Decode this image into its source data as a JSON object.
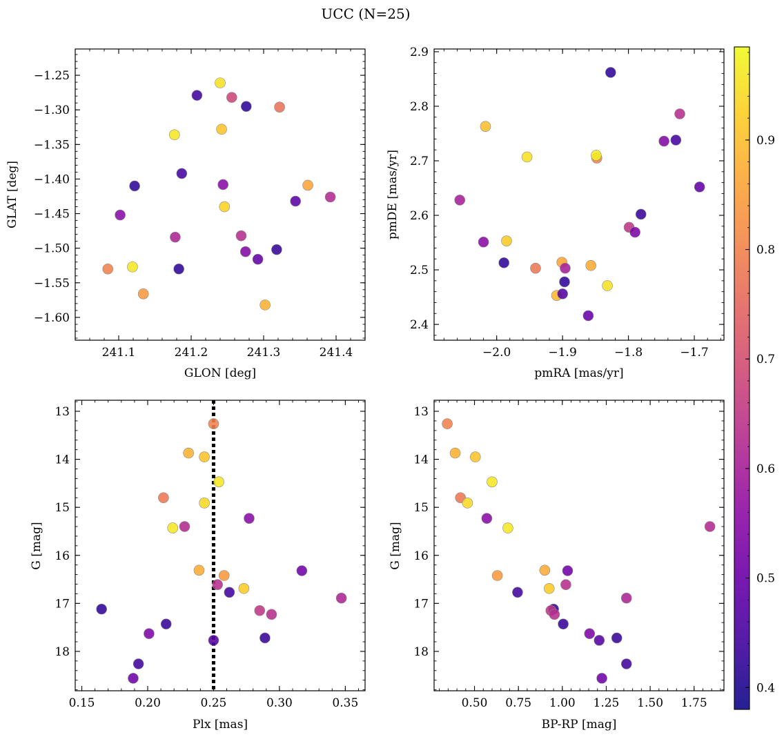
{
  "figure": {
    "title": "UCC (N=25)"
  },
  "colorbar": {
    "colormap": "plasma",
    "range": [
      0.38,
      0.985
    ],
    "ticks": [
      0.4,
      0.5,
      0.6,
      0.7,
      0.8,
      0.9
    ],
    "tick_labels": [
      "0.4",
      "0.5",
      "0.6",
      "0.7",
      "0.8",
      "0.9"
    ]
  },
  "chart_data": [
    {
      "type": "scatter",
      "id": "sky",
      "xlabel": "GLON [deg]",
      "ylabel": "GLAT [deg]",
      "xlim": [
        241.04,
        241.44
      ],
      "ylim": [
        -1.633,
        -1.212
      ],
      "xticks": [
        241.1,
        241.2,
        241.3,
        241.4
      ],
      "xtick_labels": [
        "241.1",
        "241.2",
        "241.3",
        "241.4"
      ],
      "yticks": [
        -1.25,
        -1.3,
        -1.35,
        -1.4,
        -1.45,
        -1.5,
        -1.55,
        -1.6
      ],
      "ytick_labels": [
        "−1.25",
        "−1.30",
        "−1.35",
        "−1.40",
        "−1.45",
        "−1.50",
        "−1.55",
        "−1.60"
      ],
      "yinvert": false,
      "points": [
        {
          "x": 241.24,
          "y": -1.261,
          "c": 0.95
        },
        {
          "x": 241.208,
          "y": -1.279,
          "c": 0.44
        },
        {
          "x": 241.256,
          "y": -1.282,
          "c": 0.68
        },
        {
          "x": 241.276,
          "y": -1.295,
          "c": 0.42
        },
        {
          "x": 241.322,
          "y": -1.296,
          "c": 0.77
        },
        {
          "x": 241.242,
          "y": -1.328,
          "c": 0.91
        },
        {
          "x": 241.177,
          "y": -1.336,
          "c": 0.96
        },
        {
          "x": 241.187,
          "y": -1.392,
          "c": 0.45
        },
        {
          "x": 241.244,
          "y": -1.408,
          "c": 0.55
        },
        {
          "x": 241.122,
          "y": -1.41,
          "c": 0.42
        },
        {
          "x": 241.361,
          "y": -1.409,
          "c": 0.86
        },
        {
          "x": 241.246,
          "y": -1.44,
          "c": 0.93
        },
        {
          "x": 241.344,
          "y": -1.432,
          "c": 0.48
        },
        {
          "x": 241.392,
          "y": -1.426,
          "c": 0.62
        },
        {
          "x": 241.102,
          "y": -1.452,
          "c": 0.55
        },
        {
          "x": 241.178,
          "y": -1.484,
          "c": 0.61
        },
        {
          "x": 241.269,
          "y": -1.482,
          "c": 0.63
        },
        {
          "x": 241.275,
          "y": -1.505,
          "c": 0.54
        },
        {
          "x": 241.292,
          "y": -1.516,
          "c": 0.49
        },
        {
          "x": 241.318,
          "y": -1.502,
          "c": 0.43
        },
        {
          "x": 241.085,
          "y": -1.53,
          "c": 0.8
        },
        {
          "x": 241.119,
          "y": -1.527,
          "c": 0.96
        },
        {
          "x": 241.183,
          "y": -1.53,
          "c": 0.42
        },
        {
          "x": 241.134,
          "y": -1.566,
          "c": 0.84
        },
        {
          "x": 241.302,
          "y": -1.582,
          "c": 0.88
        }
      ]
    },
    {
      "type": "scatter",
      "id": "proper-motion",
      "xlabel": "pmRA [mas/yr]",
      "ylabel": "pmDE [mas/yr]",
      "xlim": [
        -2.095,
        -1.655
      ],
      "ylim": [
        2.371,
        2.905
      ],
      "xticks": [
        -2.0,
        -1.9,
        -1.8,
        -1.7
      ],
      "xtick_labels": [
        "−2.0",
        "−1.9",
        "−1.8",
        "−1.7"
      ],
      "yticks": [
        2.4,
        2.5,
        2.6,
        2.7,
        2.8,
        2.9
      ],
      "ytick_labels": [
        "2.4",
        "2.5",
        "2.6",
        "2.7",
        "2.8",
        "2.9"
      ],
      "yinvert": false,
      "points": [
        {
          "x": -1.827,
          "y": 2.862,
          "c": 0.42
        },
        {
          "x": -1.722,
          "y": 2.786,
          "c": 0.63
        },
        {
          "x": -2.017,
          "y": 2.763,
          "c": 0.9
        },
        {
          "x": -1.746,
          "y": 2.736,
          "c": 0.54
        },
        {
          "x": -1.728,
          "y": 2.738,
          "c": 0.45
        },
        {
          "x": -1.954,
          "y": 2.707,
          "c": 0.95
        },
        {
          "x": -1.848,
          "y": 2.705,
          "c": 0.8
        },
        {
          "x": -1.849,
          "y": 2.71,
          "c": 0.97
        },
        {
          "x": -1.692,
          "y": 2.652,
          "c": 0.49
        },
        {
          "x": -2.056,
          "y": 2.628,
          "c": 0.6
        },
        {
          "x": -1.781,
          "y": 2.602,
          "c": 0.43
        },
        {
          "x": -1.799,
          "y": 2.578,
          "c": 0.65
        },
        {
          "x": -1.79,
          "y": 2.569,
          "c": 0.53
        },
        {
          "x": -2.02,
          "y": 2.551,
          "c": 0.55
        },
        {
          "x": -1.985,
          "y": 2.553,
          "c": 0.92
        },
        {
          "x": -1.989,
          "y": 2.513,
          "c": 0.42
        },
        {
          "x": -1.941,
          "y": 2.503,
          "c": 0.78
        },
        {
          "x": -1.901,
          "y": 2.514,
          "c": 0.86
        },
        {
          "x": -1.857,
          "y": 2.508,
          "c": 0.87
        },
        {
          "x": -1.896,
          "y": 2.503,
          "c": 0.6
        },
        {
          "x": -1.897,
          "y": 2.478,
          "c": 0.42
        },
        {
          "x": -1.832,
          "y": 2.471,
          "c": 0.95
        },
        {
          "x": -1.909,
          "y": 2.453,
          "c": 0.89
        },
        {
          "x": -1.9,
          "y": 2.456,
          "c": 0.47
        },
        {
          "x": -1.861,
          "y": 2.416,
          "c": 0.5
        }
      ]
    },
    {
      "type": "scatter",
      "id": "plx-mag",
      "xlabel": "Plx [mas]",
      "ylabel": "G [mag]",
      "xlim": [
        0.145,
        0.365
      ],
      "ylim": [
        18.82,
        12.77
      ],
      "xticks": [
        0.15,
        0.2,
        0.25,
        0.3,
        0.35
      ],
      "xtick_labels": [
        "0.15",
        "0.20",
        "0.25",
        "0.30",
        "0.35"
      ],
      "yticks": [
        13,
        14,
        15,
        16,
        17,
        18
      ],
      "ytick_labels": [
        "13",
        "14",
        "15",
        "16",
        "17",
        "18"
      ],
      "yinvert": true,
      "vline": 0.25,
      "points": [
        {
          "x": 0.25,
          "y": 13.26,
          "c": 0.8
        },
        {
          "x": 0.231,
          "y": 13.87,
          "c": 0.88
        },
        {
          "x": 0.243,
          "y": 13.95,
          "c": 0.91
        },
        {
          "x": 0.254,
          "y": 14.47,
          "c": 0.96
        },
        {
          "x": 0.212,
          "y": 14.8,
          "c": 0.78
        },
        {
          "x": 0.243,
          "y": 14.91,
          "c": 0.94
        },
        {
          "x": 0.277,
          "y": 15.23,
          "c": 0.55
        },
        {
          "x": 0.228,
          "y": 15.4,
          "c": 0.62
        },
        {
          "x": 0.219,
          "y": 15.43,
          "c": 0.96
        },
        {
          "x": 0.239,
          "y": 16.31,
          "c": 0.87
        },
        {
          "x": 0.317,
          "y": 16.32,
          "c": 0.51
        },
        {
          "x": 0.258,
          "y": 16.42,
          "c": 0.84
        },
        {
          "x": 0.253,
          "y": 16.61,
          "c": 0.63
        },
        {
          "x": 0.273,
          "y": 16.69,
          "c": 0.92
        },
        {
          "x": 0.262,
          "y": 16.77,
          "c": 0.44
        },
        {
          "x": 0.347,
          "y": 16.89,
          "c": 0.61
        },
        {
          "x": 0.165,
          "y": 17.12,
          "c": 0.42
        },
        {
          "x": 0.285,
          "y": 17.15,
          "c": 0.65
        },
        {
          "x": 0.294,
          "y": 17.23,
          "c": 0.63
        },
        {
          "x": 0.214,
          "y": 17.43,
          "c": 0.43
        },
        {
          "x": 0.201,
          "y": 17.63,
          "c": 0.53
        },
        {
          "x": 0.289,
          "y": 17.72,
          "c": 0.43
        },
        {
          "x": 0.25,
          "y": 17.77,
          "c": 0.47
        },
        {
          "x": 0.193,
          "y": 18.26,
          "c": 0.44
        },
        {
          "x": 0.189,
          "y": 18.56,
          "c": 0.51
        }
      ]
    },
    {
      "type": "scatter",
      "id": "cmd",
      "xlabel": "BP-RP [mag]",
      "ylabel": "G [mag]",
      "xlim": [
        0.27,
        1.92
      ],
      "ylim": [
        18.82,
        12.77
      ],
      "xticks": [
        0.5,
        0.75,
        1.0,
        1.25,
        1.5,
        1.75
      ],
      "xtick_labels": [
        "0.50",
        "0.75",
        "1.00",
        "1.25",
        "1.50",
        "1.75"
      ],
      "yticks": [
        13,
        14,
        15,
        16,
        17,
        18
      ],
      "ytick_labels": [
        "13",
        "14",
        "15",
        "16",
        "17",
        "18"
      ],
      "yinvert": true,
      "points": [
        {
          "x": 0.345,
          "y": 13.26,
          "c": 0.8
        },
        {
          "x": 0.39,
          "y": 13.87,
          "c": 0.88
        },
        {
          "x": 0.505,
          "y": 13.95,
          "c": 0.91
        },
        {
          "x": 0.6,
          "y": 14.47,
          "c": 0.96
        },
        {
          "x": 0.42,
          "y": 14.8,
          "c": 0.78
        },
        {
          "x": 0.46,
          "y": 14.91,
          "c": 0.94
        },
        {
          "x": 0.57,
          "y": 15.23,
          "c": 0.55
        },
        {
          "x": 0.69,
          "y": 15.43,
          "c": 0.96
        },
        {
          "x": 1.84,
          "y": 15.4,
          "c": 0.62
        },
        {
          "x": 0.9,
          "y": 16.31,
          "c": 0.87
        },
        {
          "x": 1.03,
          "y": 16.32,
          "c": 0.51
        },
        {
          "x": 0.63,
          "y": 16.42,
          "c": 0.84
        },
        {
          "x": 1.02,
          "y": 16.61,
          "c": 0.63
        },
        {
          "x": 0.925,
          "y": 16.69,
          "c": 0.92
        },
        {
          "x": 0.745,
          "y": 16.77,
          "c": 0.44
        },
        {
          "x": 1.365,
          "y": 16.89,
          "c": 0.61
        },
        {
          "x": 0.95,
          "y": 17.12,
          "c": 0.42
        },
        {
          "x": 0.935,
          "y": 17.15,
          "c": 0.65
        },
        {
          "x": 0.955,
          "y": 17.23,
          "c": 0.63
        },
        {
          "x": 1.005,
          "y": 17.43,
          "c": 0.43
        },
        {
          "x": 1.155,
          "y": 17.63,
          "c": 0.53
        },
        {
          "x": 1.31,
          "y": 17.72,
          "c": 0.43
        },
        {
          "x": 1.21,
          "y": 17.77,
          "c": 0.47
        },
        {
          "x": 1.365,
          "y": 18.26,
          "c": 0.44
        },
        {
          "x": 1.225,
          "y": 18.56,
          "c": 0.51
        }
      ]
    }
  ]
}
